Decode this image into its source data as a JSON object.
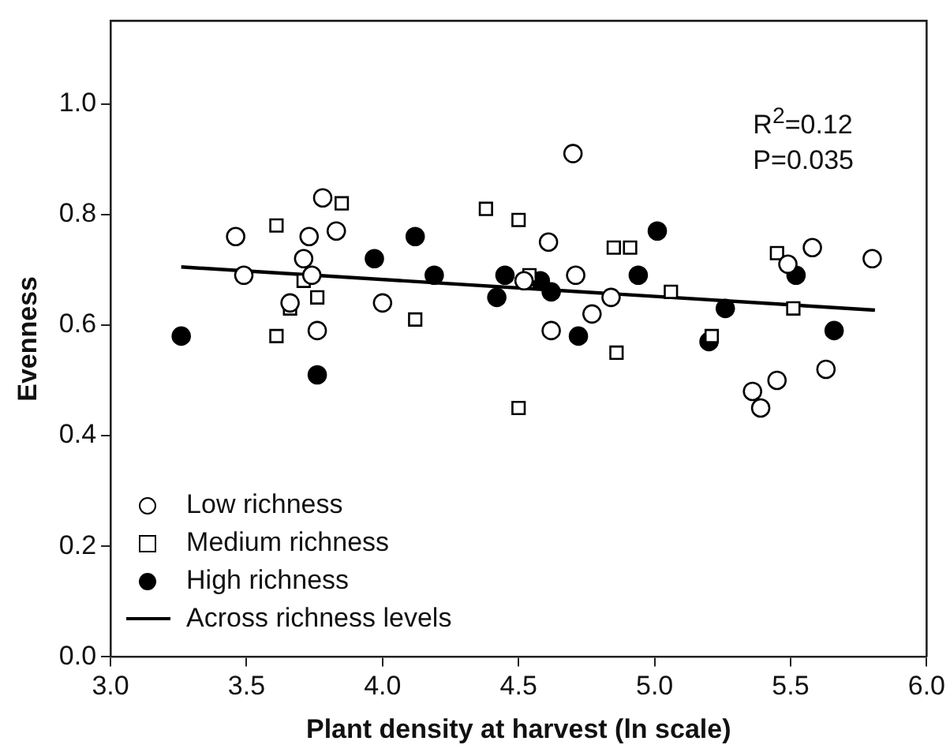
{
  "chart_data": {
    "type": "scatter",
    "xlabel": "Plant density at harvest (ln scale)",
    "ylabel": "Evenness",
    "xlim": [
      3,
      6.0
    ],
    "ylim": [
      0,
      1.15
    ],
    "xticks": [
      {
        "value": 3,
        "label": "3.0"
      },
      3.5,
      {
        "value": 4,
        "label": "4.0"
      },
      4.5,
      {
        "value": 5,
        "label": "5.0"
      },
      5.5,
      {
        "value": 6,
        "label": "6.0"
      }
    ],
    "yticks": [
      {
        "value": 0,
        "label": "0.0"
      },
      0.2,
      0.4,
      0.6,
      0.8,
      {
        "value": 1,
        "label": "1.0"
      }
    ],
    "grid": false,
    "legend": "bottom left",
    "annotations": [
      "R$^{2}$=0.12",
      "P=0.035"
    ],
    "series": [
      {
        "name": "Low richness",
        "marker": "circle",
        "color": "#ffffff",
        "x": [
          3.46,
          3.49,
          3.78,
          3.73,
          3.83,
          3.71,
          3.74,
          3.66,
          3.76,
          4.0,
          4.52,
          4.7,
          4.61,
          4.71,
          4.62,
          4.77,
          4.84,
          5.49,
          5.58,
          5.8,
          5.36,
          5.39,
          5.45,
          5.63
        ],
        "values": [
          0.76,
          0.69,
          0.83,
          0.76,
          0.77,
          0.72,
          0.69,
          0.64,
          0.59,
          0.64,
          0.68,
          0.91,
          0.75,
          0.69,
          0.59,
          0.62,
          0.65,
          0.71,
          0.74,
          0.72,
          0.48,
          0.45,
          0.5,
          0.52
        ]
      },
      {
        "name": "Medium richness",
        "marker": "square",
        "color": "#ffffff",
        "x": [
          3.61,
          3.85,
          3.71,
          3.76,
          3.66,
          3.61,
          4.12,
          4.38,
          4.5,
          4.5,
          4.54,
          4.85,
          4.91,
          5.06,
          4.86,
          5.21,
          5.45,
          5.51
        ],
        "values": [
          0.78,
          0.82,
          0.68,
          0.65,
          0.63,
          0.58,
          0.61,
          0.81,
          0.79,
          0.45,
          0.69,
          0.74,
          0.74,
          0.66,
          0.55,
          0.58,
          0.73,
          0.63
        ]
      },
      {
        "name": "High richness",
        "marker": "circle",
        "color": "#000000",
        "x": [
          3.26,
          3.76,
          3.97,
          4.12,
          4.19,
          4.42,
          4.45,
          4.58,
          4.62,
          4.72,
          4.94,
          5.01,
          5.26,
          5.2,
          5.52,
          5.66
        ],
        "values": [
          0.58,
          0.51,
          0.72,
          0.76,
          0.69,
          0.65,
          0.69,
          0.68,
          0.66,
          0.58,
          0.69,
          0.77,
          0.63,
          0.57,
          0.69,
          0.59
        ]
      },
      {
        "name": "Across richness levels",
        "type": "line",
        "marker": "none",
        "line_style": "solid",
        "color": "#000000",
        "x": [
          3.26,
          5.81
        ],
        "values": [
          0.705,
          0.627
        ]
      }
    ]
  }
}
